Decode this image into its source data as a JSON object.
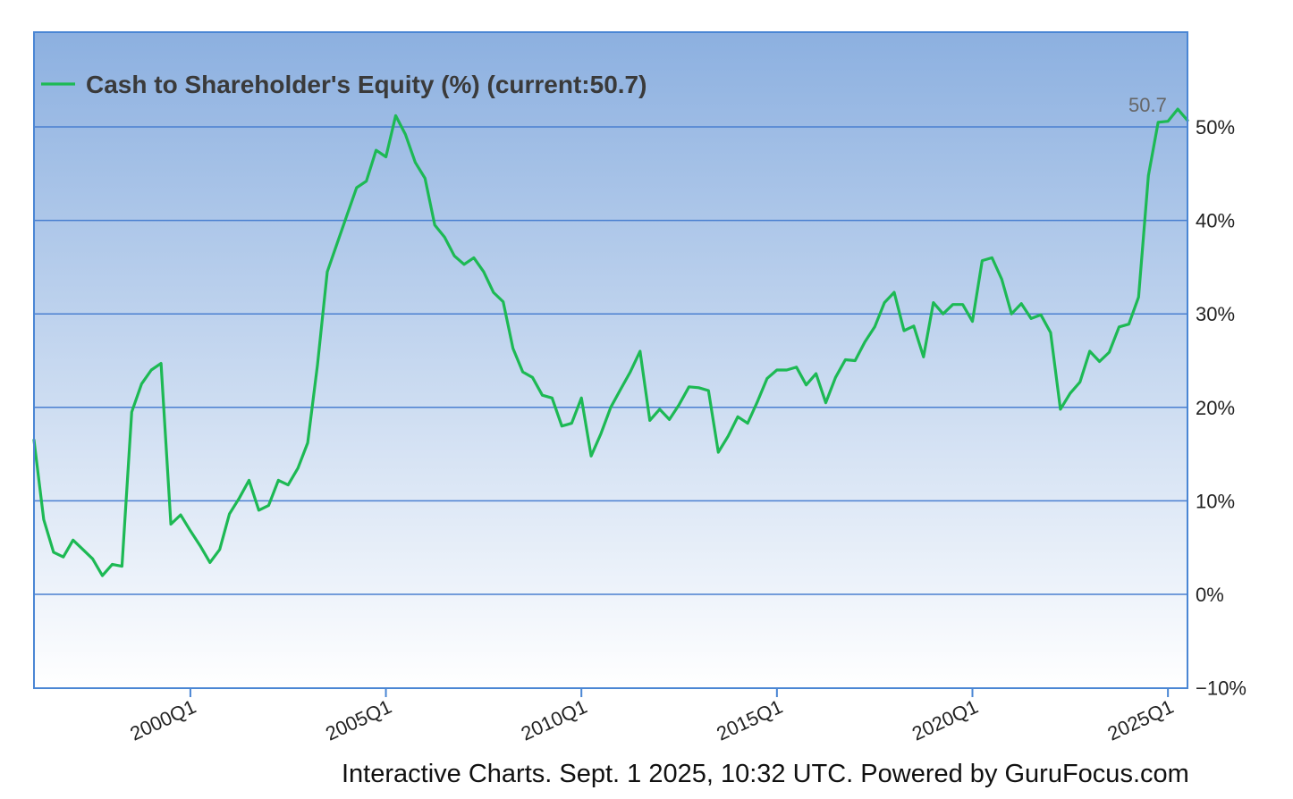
{
  "chart_data": {
    "type": "line",
    "legend": "Cash to Shareholder's Equity (%) (current:50.7)",
    "last_value_label": "50.7",
    "ylim": [
      -10,
      55
    ],
    "yticks": [
      -10,
      0,
      10,
      20,
      30,
      40,
      50
    ],
    "ytick_labels": [
      "−10%",
      "0%",
      "10%",
      "20%",
      "30%",
      "40%",
      "50%"
    ],
    "xticks": [
      2000.0,
      2005.0,
      2010.0,
      2015.0,
      2020.0,
      2025.0
    ],
    "xtick_labels": [
      "2000Q1",
      "2005Q1",
      "2010Q1",
      "2015Q1",
      "2020Q1",
      "2025Q1"
    ],
    "xlim": [
      1996.0,
      2025.5
    ],
    "grid": true,
    "legend_position": "top-left",
    "colors": {
      "line": "#1db954",
      "grid": "#4a7fd0",
      "border": "#4a86d4",
      "bg_top": "#8cb0e0",
      "bg_bottom": "#ffffff"
    },
    "series": [
      {
        "name": "Cash to Shareholder's Equity (%)",
        "x": [
          1996.0,
          1996.25,
          1996.5,
          1996.75,
          1997.0,
          1997.25,
          1997.5,
          1997.75,
          1998.0,
          1998.25,
          1998.5,
          1998.75,
          1999.0,
          1999.25,
          1999.5,
          1999.75,
          2000.0,
          2000.25,
          2000.5,
          2000.75,
          2001.0,
          2001.25,
          2001.5,
          2001.75,
          2002.0,
          2002.25,
          2002.5,
          2002.75,
          2003.0,
          2003.25,
          2003.5,
          2003.75,
          2004.0,
          2004.25,
          2004.5,
          2004.75,
          2005.0,
          2005.25,
          2005.5,
          2005.75,
          2006.0,
          2006.25,
          2006.5,
          2006.75,
          2007.0,
          2007.25,
          2007.5,
          2007.75,
          2008.0,
          2008.25,
          2008.5,
          2008.75,
          2009.0,
          2009.25,
          2009.5,
          2009.75,
          2010.0,
          2010.25,
          2010.5,
          2010.75,
          2011.0,
          2011.25,
          2011.5,
          2011.75,
          2012.0,
          2012.25,
          2012.5,
          2012.75,
          2013.0,
          2013.25,
          2013.5,
          2013.75,
          2014.0,
          2014.25,
          2014.5,
          2014.75,
          2015.0,
          2015.25,
          2015.5,
          2015.75,
          2016.0,
          2016.25,
          2016.5,
          2016.75,
          2017.0,
          2017.25,
          2017.5,
          2017.75,
          2018.0,
          2018.25,
          2018.5,
          2018.75,
          2019.0,
          2019.25,
          2019.5,
          2019.75,
          2020.0,
          2020.25,
          2020.5,
          2020.75,
          2021.0,
          2021.25,
          2021.5,
          2021.75,
          2022.0,
          2022.25,
          2022.5,
          2022.75,
          2023.0,
          2023.25,
          2023.5,
          2023.75,
          2024.0,
          2024.25,
          2024.5,
          2024.75,
          2025.0,
          2025.25,
          2025.5
        ],
        "values": [
          16.5,
          8.0,
          4.5,
          4.0,
          5.8,
          4.8,
          3.8,
          2.0,
          3.2,
          3.0,
          19.5,
          22.5,
          24.0,
          24.7,
          7.5,
          8.5,
          6.8,
          5.2,
          3.4,
          4.8,
          8.6,
          10.3,
          12.2,
          9.0,
          9.5,
          12.2,
          11.7,
          13.5,
          16.2,
          24.5,
          34.5,
          37.5,
          40.5,
          43.5,
          44.2,
          47.5,
          46.8,
          51.2,
          49.2,
          46.2,
          44.5,
          39.5,
          38.2,
          36.2,
          35.3,
          36.0,
          34.5,
          32.3,
          31.3,
          26.3,
          23.8,
          23.2,
          21.3,
          21.0,
          18.0,
          18.3,
          21.0,
          14.8,
          17.2,
          20.0,
          21.9,
          23.8,
          26.0,
          18.6,
          19.8,
          18.7,
          20.3,
          22.2,
          22.1,
          21.8,
          15.2,
          16.9,
          19.0,
          18.3,
          20.6,
          23.1,
          24.0,
          24.0,
          24.3,
          22.4,
          23.6,
          20.5,
          23.2,
          25.1,
          25.0,
          27.0,
          28.6,
          31.2,
          32.3,
          28.2,
          28.7,
          25.4,
          31.2,
          30.0,
          31.0,
          31.0,
          29.2,
          35.7,
          36.0,
          33.7,
          30.0,
          31.1,
          29.5,
          29.9,
          28.0,
          19.8,
          21.5,
          22.7,
          26.0,
          24.9,
          25.9,
          28.6,
          28.9,
          31.8,
          44.8,
          50.5,
          50.6,
          51.9,
          50.7
        ]
      }
    ]
  },
  "footer": "Interactive Charts. Sept. 1 2025, 10:32 UTC. Powered by GuruFocus.com"
}
